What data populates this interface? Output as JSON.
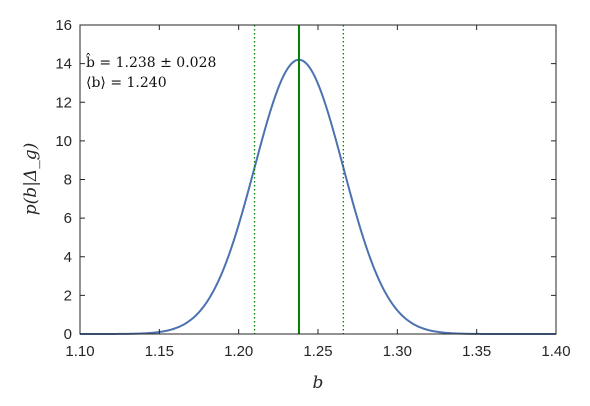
{
  "chart_data": {
    "type": "line",
    "title": "",
    "xlabel": "b",
    "ylabel": "p(b|Δ_g)",
    "xlim": [
      1.1,
      1.4
    ],
    "ylim": [
      0,
      16
    ],
    "xticks": [
      1.1,
      1.15,
      1.2,
      1.25,
      1.3,
      1.35,
      1.4
    ],
    "xtick_labels": [
      "1.10",
      "1.15",
      "1.20",
      "1.25",
      "1.30",
      "1.35",
      "1.40"
    ],
    "yticks": [
      0,
      2,
      4,
      6,
      8,
      10,
      12,
      14,
      16
    ],
    "ytick_labels": [
      "0",
      "2",
      "4",
      "6",
      "8",
      "10",
      "12",
      "14",
      "16"
    ],
    "grid": false,
    "series": [
      {
        "color": "#4c72b0",
        "distribution": "gaussian",
        "mean": 1.238,
        "sigma": 0.028,
        "peak": 14.2
      }
    ],
    "vertical_lines": [
      {
        "x": 1.238,
        "style": "solid",
        "color": "#008000"
      },
      {
        "x": 1.21,
        "style": "dotted",
        "color": "#008000"
      },
      {
        "x": 1.266,
        "style": "dotted",
        "color": "#008000"
      }
    ],
    "annotations": [
      "b̂ = 1.238 ± 0.028",
      "⟨b⟩ = 1.240"
    ]
  }
}
